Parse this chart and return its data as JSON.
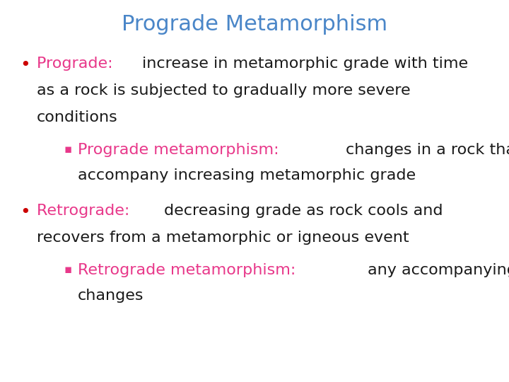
{
  "title": "Prograde Metamorphism",
  "title_color": "#4a86c8",
  "background_color": "#ffffff",
  "title_fontsize": 22,
  "body_fontsize": 16,
  "sub_fontsize": 16,
  "bullet_color": "#cc0000",
  "pink_color": "#e8388a",
  "dark_color": "#1a1a1a",
  "bullet1_colored": "Prograde: ",
  "bullet1_line1": "increase in metamorphic grade with time",
  "bullet1_line2": "as a rock is subjected to gradually more severe",
  "bullet1_line3": "conditions",
  "sub1_colored": "Prograde metamorphism: ",
  "sub1_line1": "changes in a rock that",
  "sub1_line2": "accompany increasing metamorphic grade",
  "bullet2_colored": "Retrograde: ",
  "bullet2_line1": "decreasing grade as rock cools and",
  "bullet2_line2": "recovers from a metamorphic or igneous event",
  "sub2_colored": "Retrograde metamorphism: ",
  "sub2_line1": "any accompanying",
  "sub2_line2": "changes"
}
